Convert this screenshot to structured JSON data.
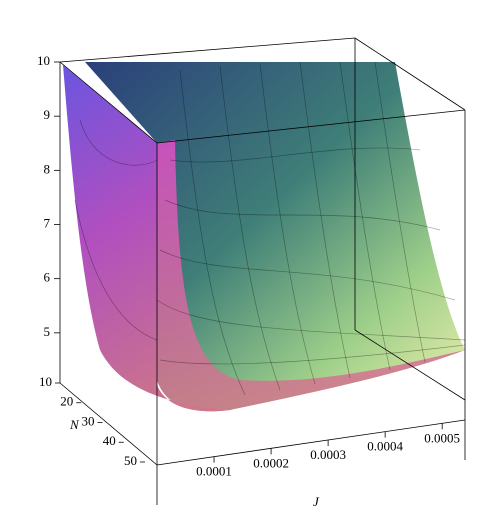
{
  "chart_data": {
    "type": "surface3d",
    "zlim": [
      4,
      10
    ],
    "zticks": [
      5,
      6,
      7,
      8,
      9,
      10
    ],
    "nlim": [
      10,
      50
    ],
    "nticks": [
      10,
      20,
      30,
      40,
      50
    ],
    "nlabel": "N",
    "jlim": [
      0,
      0.00054
    ],
    "jticks": [
      0.0001,
      0.0002,
      0.0003,
      0.0004,
      0.0005
    ],
    "jlabel": "J"
  }
}
